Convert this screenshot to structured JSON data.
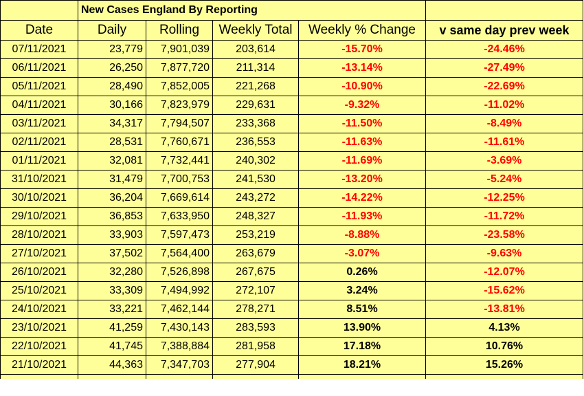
{
  "title": "New Cases England By Reporting",
  "columns": [
    "Date",
    "Daily",
    "Rolling",
    "Weekly Total",
    "Weekly % Change",
    "v same day prev week"
  ],
  "rows": [
    {
      "date": "07/11/2021",
      "daily": "23,779",
      "rolling": "7,901,039",
      "weekly_total": "203,614",
      "weekly_pct_change": "-15.70%",
      "vs_prev_week": "-24.46%"
    },
    {
      "date": "06/11/2021",
      "daily": "26,250",
      "rolling": "7,877,720",
      "weekly_total": "211,314",
      "weekly_pct_change": "-13.14%",
      "vs_prev_week": "-27.49%"
    },
    {
      "date": "05/11/2021",
      "daily": "28,490",
      "rolling": "7,852,005",
      "weekly_total": "221,268",
      "weekly_pct_change": "-10.90%",
      "vs_prev_week": "-22.69%"
    },
    {
      "date": "04/11/2021",
      "daily": "30,166",
      "rolling": "7,823,979",
      "weekly_total": "229,631",
      "weekly_pct_change": "-9.32%",
      "vs_prev_week": "-11.02%"
    },
    {
      "date": "03/11/2021",
      "daily": "34,317",
      "rolling": "7,794,507",
      "weekly_total": "233,368",
      "weekly_pct_change": "-11.50%",
      "vs_prev_week": "-8.49%"
    },
    {
      "date": "02/11/2021",
      "daily": "28,531",
      "rolling": "7,760,671",
      "weekly_total": "236,553",
      "weekly_pct_change": "-11.63%",
      "vs_prev_week": "-11.61%"
    },
    {
      "date": "01/11/2021",
      "daily": "32,081",
      "rolling": "7,732,441",
      "weekly_total": "240,302",
      "weekly_pct_change": "-11.69%",
      "vs_prev_week": "-3.69%"
    },
    {
      "date": "31/10/2021",
      "daily": "31,479",
      "rolling": "7,700,753",
      "weekly_total": "241,530",
      "weekly_pct_change": "-13.20%",
      "vs_prev_week": "-5.24%"
    },
    {
      "date": "30/10/2021",
      "daily": "36,204",
      "rolling": "7,669,614",
      "weekly_total": "243,272",
      "weekly_pct_change": "-14.22%",
      "vs_prev_week": "-12.25%"
    },
    {
      "date": "29/10/2021",
      "daily": "36,853",
      "rolling": "7,633,950",
      "weekly_total": "248,327",
      "weekly_pct_change": "-11.93%",
      "vs_prev_week": "-11.72%"
    },
    {
      "date": "28/10/2021",
      "daily": "33,903",
      "rolling": "7,597,473",
      "weekly_total": "253,219",
      "weekly_pct_change": "-8.88%",
      "vs_prev_week": "-23.58%"
    },
    {
      "date": "27/10/2021",
      "daily": "37,502",
      "rolling": "7,564,400",
      "weekly_total": "263,679",
      "weekly_pct_change": "-3.07%",
      "vs_prev_week": "-9.63%"
    },
    {
      "date": "26/10/2021",
      "daily": "32,280",
      "rolling": "7,526,898",
      "weekly_total": "267,675",
      "weekly_pct_change": "0.26%",
      "vs_prev_week": "-12.07%"
    },
    {
      "date": "25/10/2021",
      "daily": "33,309",
      "rolling": "7,494,992",
      "weekly_total": "272,107",
      "weekly_pct_change": "3.24%",
      "vs_prev_week": "-15.62%"
    },
    {
      "date": "24/10/2021",
      "daily": "33,221",
      "rolling": "7,462,144",
      "weekly_total": "278,271",
      "weekly_pct_change": "8.51%",
      "vs_prev_week": "-13.81%"
    },
    {
      "date": "23/10/2021",
      "daily": "41,259",
      "rolling": "7,430,143",
      "weekly_total": "283,593",
      "weekly_pct_change": "13.90%",
      "vs_prev_week": "4.13%"
    },
    {
      "date": "22/10/2021",
      "daily": "41,745",
      "rolling": "7,388,884",
      "weekly_total": "281,958",
      "weekly_pct_change": "17.18%",
      "vs_prev_week": "10.76%"
    },
    {
      "date": "21/10/2021",
      "daily": "44,363",
      "rolling": "7,347,703",
      "weekly_total": "277,904",
      "weekly_pct_change": "18.21%",
      "vs_prev_week": "15.26%"
    }
  ],
  "colors": {
    "cell_fill": "#ffff99",
    "negative": "#ff0000",
    "positive": "#000000",
    "grid": "#000000"
  }
}
